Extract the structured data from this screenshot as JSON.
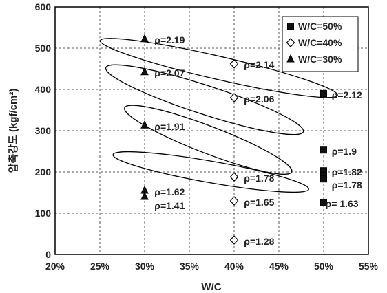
{
  "chart_data": {
    "type": "scatter",
    "xlabel": "W/C",
    "ylabel": "압축강도 (kgf/cm²)",
    "xlim": [
      0.2,
      0.55
    ],
    "ylim": [
      0,
      600
    ],
    "x_ticks": [
      {
        "value": 0.2,
        "label": "20%"
      },
      {
        "value": 0.25,
        "label": "25%"
      },
      {
        "value": 0.3,
        "label": "30%"
      },
      {
        "value": 0.35,
        "label": "35%"
      },
      {
        "value": 0.4,
        "label": "40%"
      },
      {
        "value": 0.45,
        "label": "45%"
      },
      {
        "value": 0.5,
        "label": "50%"
      },
      {
        "value": 0.55,
        "label": "55%"
      }
    ],
    "y_ticks": [
      0,
      100,
      200,
      300,
      400,
      500,
      600
    ],
    "grid": "dashed",
    "legend_position": "top-right",
    "series": [
      {
        "name": "W/C=50%",
        "marker": "filled-square",
        "points": [
          {
            "x": 0.5,
            "y": 390
          },
          {
            "x": 0.5,
            "y": 253
          },
          {
            "x": 0.5,
            "y": 203
          },
          {
            "x": 0.5,
            "y": 192
          },
          {
            "x": 0.5,
            "y": 183
          },
          {
            "x": 0.5,
            "y": 126
          }
        ]
      },
      {
        "name": "W/C=40%",
        "marker": "open-diamond",
        "points": [
          {
            "x": 0.4,
            "y": 462
          },
          {
            "x": 0.4,
            "y": 380
          },
          {
            "x": 0.4,
            "y": 188
          },
          {
            "x": 0.4,
            "y": 130
          },
          {
            "x": 0.4,
            "y": 35
          }
        ]
      },
      {
        "name": "W/C=30%",
        "marker": "filled-triangle",
        "points": [
          {
            "x": 0.3,
            "y": 522
          },
          {
            "x": 0.3,
            "y": 442
          },
          {
            "x": 0.3,
            "y": 313
          },
          {
            "x": 0.3,
            "y": 155
          },
          {
            "x": 0.3,
            "y": 140
          }
        ]
      }
    ],
    "annotations": [
      {
        "text": "ρ=2.19",
        "x": 0.311,
        "y": 520
      },
      {
        "text": "ρ=2.07",
        "x": 0.311,
        "y": 440
      },
      {
        "text": "ρ=1.91",
        "x": 0.311,
        "y": 310
      },
      {
        "text": "ρ=1.62",
        "x": 0.311,
        "y": 152
      },
      {
        "text": "ρ=1.41",
        "x": 0.311,
        "y": 118
      },
      {
        "text": "ρ=2.14",
        "x": 0.411,
        "y": 460
      },
      {
        "text": "ρ=2.06",
        "x": 0.411,
        "y": 377
      },
      {
        "text": "ρ=1.78",
        "x": 0.411,
        "y": 185
      },
      {
        "text": "ρ=1.65",
        "x": 0.411,
        "y": 127
      },
      {
        "text": "ρ=1.28",
        "x": 0.411,
        "y": 32
      },
      {
        "text": "ρ=2.12",
        "x": 0.509,
        "y": 387
      },
      {
        "text": "ρ=1.9",
        "x": 0.509,
        "y": 250
      },
      {
        "text": "ρ=1.82",
        "x": 0.509,
        "y": 200
      },
      {
        "text": "ρ=1.78",
        "x": 0.509,
        "y": 168
      },
      {
        "text": "ρ= 1.63",
        "x": 0.502,
        "y": 123
      }
    ],
    "ellipses": [
      {
        "center": [
          0.383,
          452
        ],
        "rx": 0.136,
        "ry": 28,
        "angle_deg": 13
      },
      {
        "center": [
          0.367,
          375
        ],
        "rx": 0.116,
        "ry": 35,
        "angle_deg": 18
      },
      {
        "center": [
          0.371,
          278
        ],
        "rx": 0.1,
        "ry": 33,
        "angle_deg": 21
      },
      {
        "center": [
          0.374,
          200
        ],
        "rx": 0.111,
        "ry": 26,
        "angle_deg": 10
      }
    ]
  }
}
